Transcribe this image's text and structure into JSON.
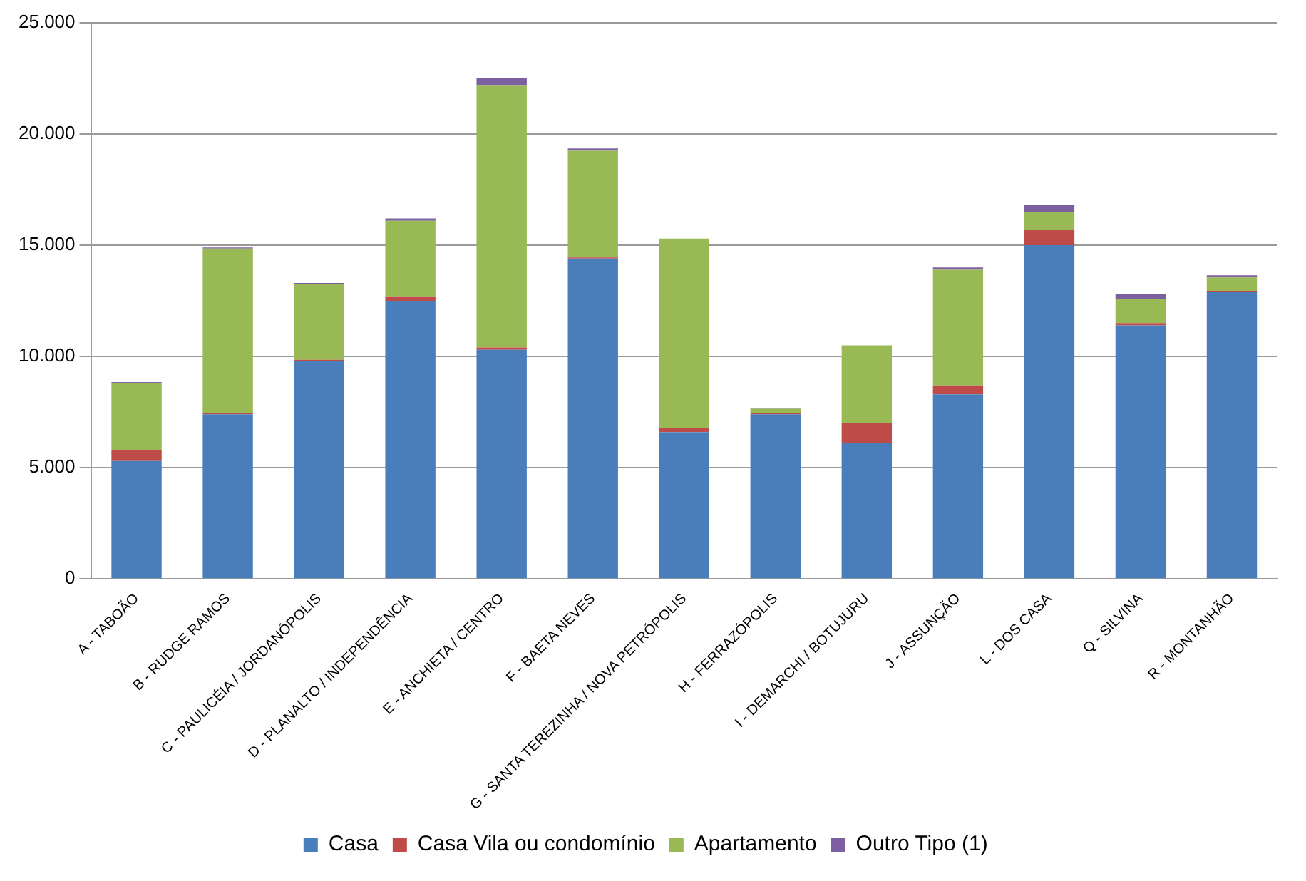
{
  "chart_data": {
    "type": "bar",
    "stacked": true,
    "grid": "y",
    "legend": "bottom",
    "categories": [
      "A - TABOÃO",
      "B - RUDGE RAMOS",
      "C - PAULICÉIA / JORDANÓPOLIS",
      "D - PLANALTO / INDEPENDÊNCIA",
      "E - ANCHIETA / CENTRO",
      "F - BAETA NEVES",
      "G - SANTA TEREZINHA / NOVA PETRÓPOLIS",
      "H - FERRAZÓPOLIS",
      "I - DEMARCHI / BOTUJURU",
      "J - ASSUNÇÃO",
      "L - DOS CASA",
      "Q - SILVINA",
      "R - MONTANHÃO"
    ],
    "ylim": [
      0,
      25000
    ],
    "yticks": [
      {
        "value": 0,
        "label": "0"
      },
      {
        "value": 5000,
        "label": "5.000"
      },
      {
        "value": 10000,
        "label": "10.000"
      },
      {
        "value": 15000,
        "label": "15.000"
      },
      {
        "value": 20000,
        "label": "20.000"
      },
      {
        "value": 25000,
        "label": "25.000"
      }
    ],
    "series": [
      {
        "name": "Casa",
        "color": "#4a7ebb",
        "values": [
          5300,
          7400,
          9800,
          12500,
          10300,
          14400,
          6600,
          7400,
          6100,
          8300,
          15000,
          11400,
          12900
        ]
      },
      {
        "name": "Casa Vila ou condomínio",
        "color": "#be4b48",
        "values": [
          500,
          50,
          50,
          200,
          100,
          50,
          200,
          50,
          900,
          400,
          700,
          100,
          50
        ]
      },
      {
        "name": "Apartamento",
        "color": "#98b954",
        "values": [
          3000,
          7400,
          3400,
          3400,
          11800,
          4800,
          8500,
          200,
          3500,
          5200,
          800,
          1100,
          600
        ]
      },
      {
        "name": "Outro Tipo (1)",
        "color": "#7d60a0",
        "values": [
          50,
          50,
          50,
          100,
          300,
          100,
          0,
          50,
          0,
          100,
          300,
          200,
          100
        ]
      }
    ]
  }
}
